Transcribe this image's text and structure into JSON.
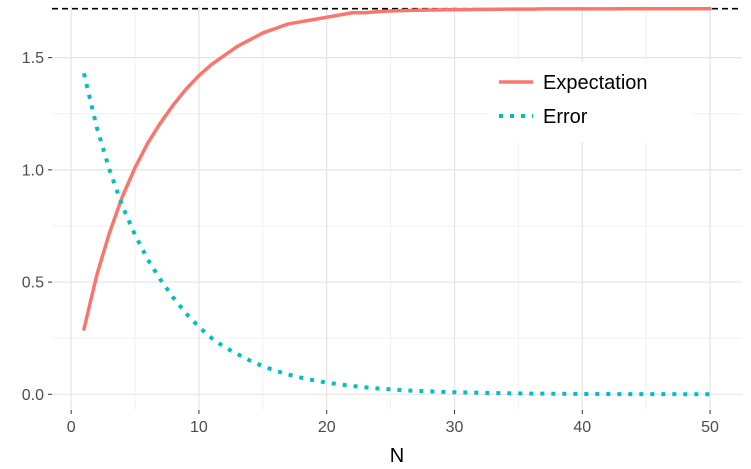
{
  "chart_data": {
    "type": "line",
    "title": "",
    "xlabel": "N",
    "ylabel": "",
    "xlim": [
      -1.5,
      52.5
    ],
    "ylim": [
      -0.07,
      1.73
    ],
    "x_ticks": [
      0,
      10,
      20,
      30,
      40,
      50
    ],
    "x_tick_labels": [
      "0",
      "10",
      "20",
      "30",
      "40",
      "50"
    ],
    "y_ticks": [
      0.0,
      0.5,
      1.0,
      1.5
    ],
    "y_tick_labels": [
      "0.0",
      "0.5",
      "1.0",
      "1.5"
    ],
    "grid": true,
    "legend_position": "top-right",
    "reference_line": {
      "y": 1.718,
      "style": "dashed",
      "color": "#000000"
    },
    "x": [
      1,
      2,
      3,
      4,
      5,
      6,
      7,
      8,
      9,
      10,
      11,
      12,
      13,
      14,
      15,
      16,
      17,
      18,
      19,
      20,
      21,
      22,
      23,
      24,
      25,
      26,
      27,
      28,
      29,
      30,
      31,
      32,
      33,
      34,
      35,
      36,
      37,
      38,
      39,
      40,
      41,
      42,
      43,
      44,
      45,
      46,
      47,
      48,
      49,
      50
    ],
    "series": [
      {
        "name": "Expectation",
        "style": "solid",
        "color": "#F8766D",
        "values": [
          0.29,
          0.53,
          0.72,
          0.88,
          1.01,
          1.12,
          1.21,
          1.29,
          1.36,
          1.42,
          1.47,
          1.51,
          1.55,
          1.58,
          1.61,
          1.63,
          1.65,
          1.66,
          1.67,
          1.68,
          1.69,
          1.7,
          1.7,
          1.705,
          1.708,
          1.71,
          1.711,
          1.712,
          1.713,
          1.714,
          1.714,
          1.715,
          1.715,
          1.716,
          1.716,
          1.716,
          1.717,
          1.717,
          1.717,
          1.717,
          1.717,
          1.717,
          1.718,
          1.718,
          1.718,
          1.718,
          1.718,
          1.718,
          1.718,
          1.718
        ]
      },
      {
        "name": "Error",
        "style": "dotted",
        "color": "#00BFC4",
        "values": [
          1.43,
          1.19,
          1.0,
          0.84,
          0.71,
          0.6,
          0.51,
          0.43,
          0.36,
          0.3,
          0.25,
          0.21,
          0.18,
          0.15,
          0.125,
          0.105,
          0.088,
          0.074,
          0.062,
          0.052,
          0.044,
          0.037,
          0.031,
          0.026,
          0.022,
          0.018,
          0.015,
          0.013,
          0.011,
          0.009,
          0.008,
          0.0066,
          0.0055,
          0.0046,
          0.0039,
          0.0032,
          0.0027,
          0.0023,
          0.0019,
          0.0016,
          0.0013,
          0.0011,
          0.0009,
          0.0008,
          0.0007,
          0.0006,
          0.0005,
          0.0004,
          0.0003,
          0.0003
        ]
      }
    ]
  }
}
